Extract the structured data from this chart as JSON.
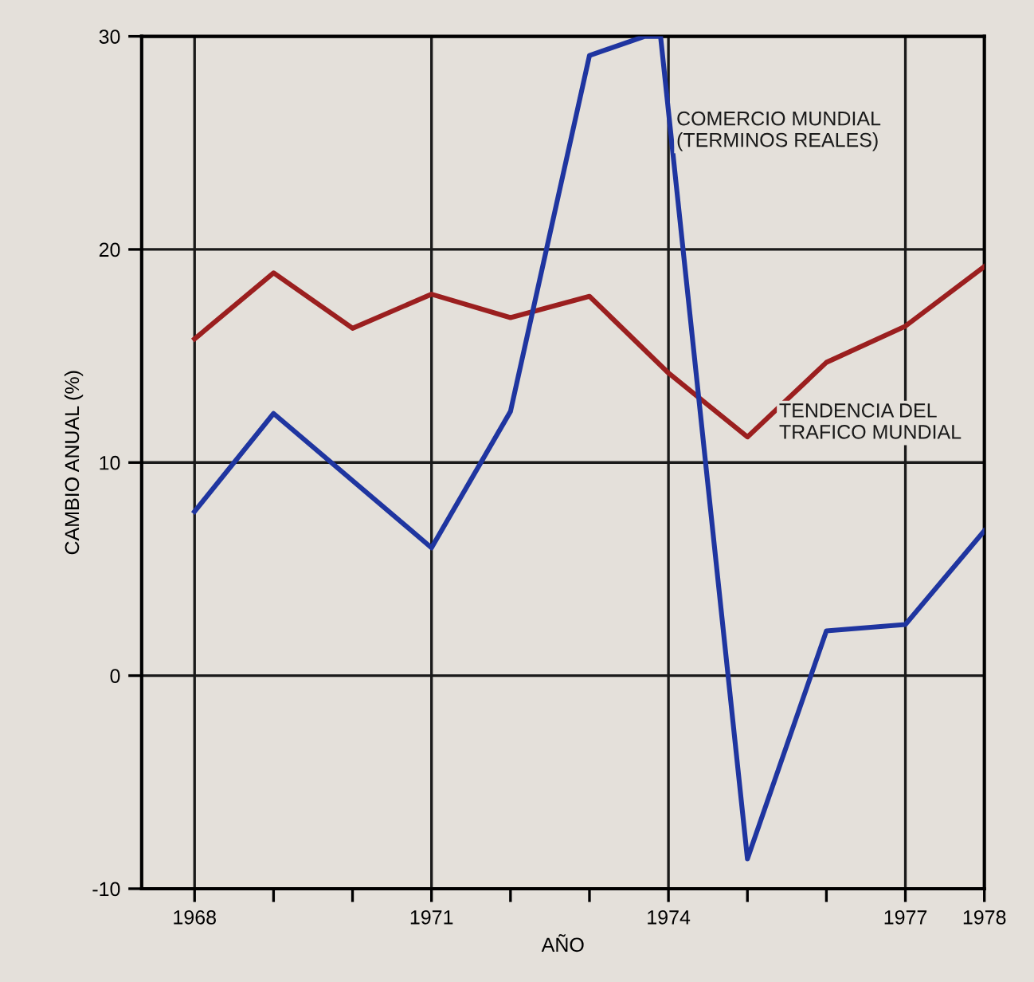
{
  "chart_data": {
    "type": "line",
    "xlabel": "AÑO",
    "ylabel": "CAMBIO ANUAL (%)",
    "xlim": [
      1967.33,
      1978
    ],
    "ylim": [
      -10,
      30
    ],
    "xticks": [
      1968,
      {
        "value": 1969,
        "label": null
      },
      {
        "value": 1970,
        "label": null
      },
      1971,
      {
        "value": 1972,
        "label": null
      },
      {
        "value": 1973,
        "label": null
      },
      1974,
      {
        "value": 1975,
        "label": null
      },
      {
        "value": 1976,
        "label": null
      },
      1977,
      1978
    ],
    "yticks": [
      -10,
      0,
      10,
      20,
      30
    ],
    "grid": "y",
    "marker": "none",
    "line_style": "solid",
    "ref_lines": [
      {
        "axis": "x",
        "value": 1968,
        "color": "#1a1a1a"
      },
      {
        "axis": "x",
        "value": 1971,
        "color": "#1a1a1a"
      },
      {
        "axis": "x",
        "value": 1974,
        "color": "#1a1a1a"
      },
      {
        "axis": "x",
        "value": 1977,
        "color": "#1a1a1a"
      }
    ],
    "series": [
      {
        "color": "#9b1f1f",
        "x": [
          1968,
          1969,
          1970,
          1971,
          1972,
          1973,
          1974,
          1975,
          1976,
          1977,
          1978
        ],
        "values": [
          15.8,
          18.9,
          16.3,
          17.9,
          16.8,
          17.8,
          14.2,
          11.2,
          14.7,
          16.4,
          19.2
        ]
      },
      {
        "color": "#1f35a0",
        "x": [
          1968,
          1969,
          1971,
          1972,
          1973,
          1973.7,
          1973.9,
          1975,
          1976,
          1977,
          1978
        ],
        "values": [
          7.7,
          12.3,
          6.0,
          12.4,
          29.1,
          30,
          30,
          -8.6,
          2.1,
          2.4,
          6.8
        ]
      }
    ],
    "annotations": [
      {
        "text": "COMERCIO MUNDIAL\n(TERMINOS REALES)",
        "x": 1974.1,
        "y": 26.5
      },
      {
        "text": "TENDENCIA DEL\nTRAFICO MUNDIAL",
        "x": 1975.4,
        "y": 12.8
      }
    ]
  }
}
